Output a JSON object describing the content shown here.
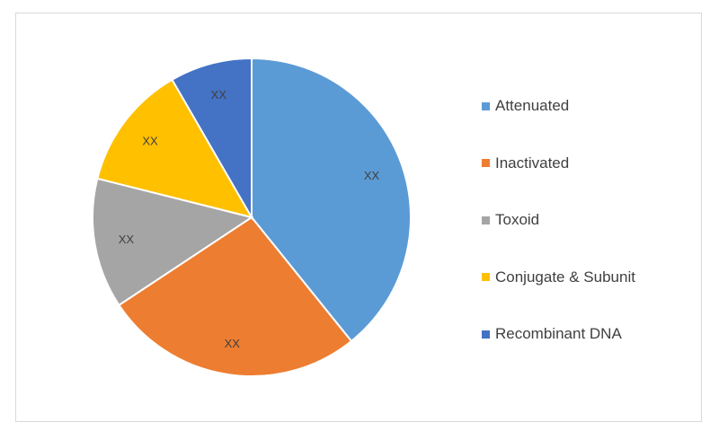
{
  "chart_data": {
    "type": "pie",
    "categories": [
      "Attenuated",
      "Inactivated",
      "Toxoid",
      "Conjugate & Subunit",
      "Recombinant DNA"
    ],
    "values": [
      40,
      27,
      13.5,
      13,
      8.5
    ],
    "data_labels": [
      "XX",
      "XX",
      "XX",
      "XX",
      "XX"
    ],
    "colors": [
      "#5b9bd5",
      "#ed7d31",
      "#a5a5a5",
      "#ffc000",
      "#4472c4"
    ],
    "legend": {
      "placement": "right",
      "items": [
        {
          "label": "Attenuated",
          "color": "#5b9bd5"
        },
        {
          "label": "Inactivated",
          "color": "#ed7d31"
        },
        {
          "label": "Toxoid",
          "color": "#a5a5a5"
        },
        {
          "label": "Conjugate & Subunit",
          "color": "#ffc000"
        },
        {
          "label": "Recombinant DNA",
          "color": "#4472c4"
        }
      ]
    }
  }
}
